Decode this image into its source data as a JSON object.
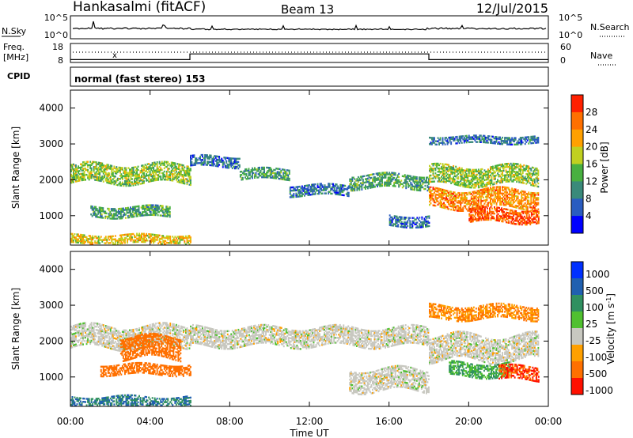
{
  "header": {
    "station": "Hankasalmi (fitACF)",
    "beam": "Beam 13",
    "date": "12/Jul/2015"
  },
  "noise_panel": {
    "left_label": "N.Sky",
    "right_label": "N.Search",
    "left_ticks": [
      "10^5",
      "10^0"
    ],
    "right_ticks": [
      "10^5",
      "10^0"
    ]
  },
  "freq_panel": {
    "left_label_line1": "Freq.",
    "left_label_line2": "[MHz]",
    "left_ticks": [
      "18",
      "8"
    ],
    "right_label": "Nave",
    "right_ticks": [
      "60",
      "0"
    ]
  },
  "cpid_panel": {
    "label": "CPID",
    "text": "normal (fast stereo) 153"
  },
  "x_axis": {
    "tick_labels": [
      "00:00",
      "04:00",
      "08:00",
      "12:00",
      "16:00",
      "20:00",
      "00:00"
    ],
    "label": "Time UT"
  },
  "y_axis": {
    "label": "Slant Range [km]",
    "tick_labels": [
      "1000",
      "2000",
      "3000",
      "4000"
    ]
  },
  "power_colorbar": {
    "title": "Power [dB]",
    "tick_labels": [
      "4",
      "8",
      "12",
      "16",
      "20",
      "24",
      "28"
    ],
    "colors": [
      "#0000ff",
      "#2a5cc0",
      "#3a8a7a",
      "#48b040",
      "#c0d020",
      "#ffa000",
      "#ff7000",
      "#ff2000"
    ]
  },
  "velocity_colorbar": {
    "title": "Velocity [m s^-1]",
    "tick_labels": [
      "1000",
      "500",
      "100",
      "25",
      "-25",
      "-100",
      "-500",
      "-1000"
    ],
    "colors": [
      "#0030ff",
      "#2060b0",
      "#309060",
      "#50c030",
      "#c8c8c0",
      "#ffa000",
      "#ff7000",
      "#ff1000"
    ]
  },
  "chart_data": [
    {
      "type": "heatmap",
      "title": "Power [dB]",
      "xlabel": "Time UT",
      "ylabel": "Slant Range [km]",
      "xlim": [
        0,
        24
      ],
      "ylim": [
        180,
        4500
      ],
      "bands": [
        {
          "t0": 0.0,
          "t1": 6.0,
          "r_mid": 2150,
          "half_width": 250,
          "value": 16
        },
        {
          "t0": 1.0,
          "t1": 5.0,
          "r_mid": 1100,
          "half_width": 150,
          "value": 12
        },
        {
          "t0": 0.0,
          "t1": 6.0,
          "r_mid": 330,
          "half_width": 120,
          "value": 20
        },
        {
          "t0": 6.0,
          "t1": 8.5,
          "r_mid": 2500,
          "half_width": 150,
          "value": 8
        },
        {
          "t0": 8.5,
          "t1": 11.0,
          "r_mid": 2150,
          "half_width": 150,
          "value": 12
        },
        {
          "t0": 11.0,
          "t1": 14.0,
          "r_mid": 1700,
          "half_width": 150,
          "value": 8
        },
        {
          "t0": 14.0,
          "t1": 18.0,
          "r_mid": 1950,
          "half_width": 200,
          "value": 12
        },
        {
          "t0": 16.0,
          "t1": 18.0,
          "r_mid": 850,
          "half_width": 150,
          "value": 8
        },
        {
          "t0": 18.0,
          "t1": 23.5,
          "r_mid": 2100,
          "half_width": 250,
          "value": 16
        },
        {
          "t0": 18.0,
          "t1": 23.5,
          "r_mid": 1450,
          "half_width": 250,
          "value": 24
        },
        {
          "t0": 20.0,
          "t1": 23.5,
          "r_mid": 1000,
          "half_width": 200,
          "value": 28
        },
        {
          "t0": 18.0,
          "t1": 23.5,
          "r_mid": 3100,
          "half_width": 100,
          "value": 8
        }
      ]
    },
    {
      "type": "heatmap",
      "title": "Velocity [m s^-1]",
      "xlabel": "Time UT",
      "ylabel": "Slant Range [km]",
      "xlim": [
        0,
        24
      ],
      "ylim": [
        180,
        4500
      ],
      "bands": [
        {
          "t0": 0.0,
          "t1": 6.0,
          "r_mid": 2100,
          "half_width": 300,
          "value": 0
        },
        {
          "t0": 2.5,
          "t1": 5.5,
          "r_mid": 1800,
          "half_width": 300,
          "value": -300
        },
        {
          "t0": 1.5,
          "t1": 6.0,
          "r_mid": 1200,
          "half_width": 150,
          "value": -300
        },
        {
          "t0": 0.0,
          "t1": 6.0,
          "r_mid": 300,
          "half_width": 150,
          "value": 100
        },
        {
          "t0": 6.0,
          "t1": 18.0,
          "r_mid": 2100,
          "half_width": 250,
          "value": 0
        },
        {
          "t0": 14.0,
          "t1": 18.0,
          "r_mid": 900,
          "half_width": 300,
          "value": 0
        },
        {
          "t0": 18.0,
          "t1": 23.5,
          "r_mid": 1800,
          "half_width": 350,
          "value": 0
        },
        {
          "t0": 19.0,
          "t1": 22.0,
          "r_mid": 1200,
          "half_width": 200,
          "value": 60
        },
        {
          "t0": 21.5,
          "t1": 23.5,
          "r_mid": 1100,
          "half_width": 200,
          "value": -500
        },
        {
          "t0": 18.0,
          "t1": 23.5,
          "r_mid": 2800,
          "half_width": 200,
          "value": -100
        }
      ]
    },
    {
      "type": "line",
      "title": "Freq. [MHz]",
      "xlim": [
        0,
        24
      ],
      "ylim": [
        8,
        18
      ],
      "x": [
        0,
        6.0,
        6.0,
        18.0,
        18.0,
        24
      ],
      "series": [
        {
          "values": [
            9.5,
            9.5,
            12.5,
            12.5,
            9.5,
            9.5
          ]
        }
      ]
    }
  ]
}
